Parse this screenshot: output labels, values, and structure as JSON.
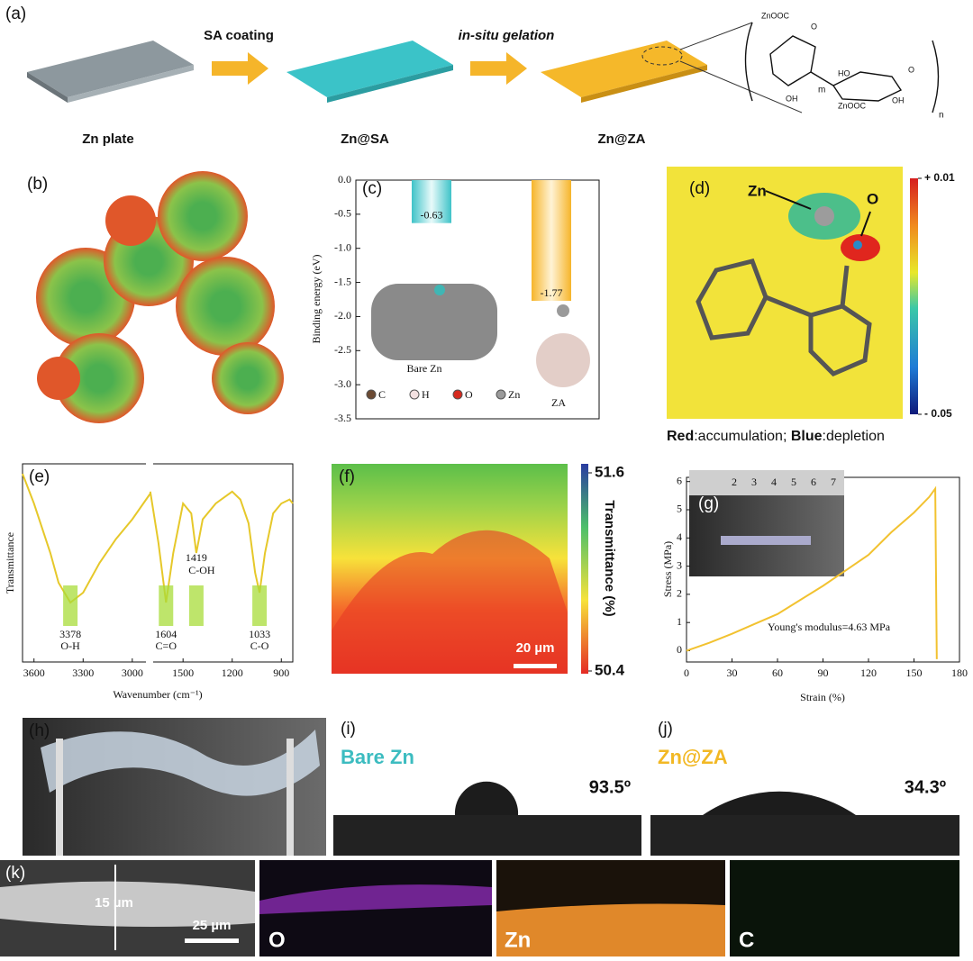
{
  "panel_a": {
    "label": "(a)",
    "steps": [
      "SA coating",
      "in-situ gelation"
    ],
    "samples": [
      "Zn plate",
      "Zn@SA",
      "Zn@ZA"
    ],
    "structure": [
      "ZnOOC",
      "HO",
      "OH",
      "O",
      "OH",
      "ZnOOC",
      "O",
      "m",
      "n"
    ]
  },
  "panel_b": {
    "label": "(b)"
  },
  "panel_c": {
    "label": "(c)",
    "type": "bar",
    "y_label": "Binding energy (eV)",
    "categories": [
      "Bare Zn",
      "ZA"
    ],
    "values": [
      -0.63,
      -1.77
    ],
    "value_labels": [
      "-0.63",
      "-1.77"
    ],
    "colors": [
      "#3fc3c8",
      "#f6b52a"
    ],
    "ylim": [
      -3.5,
      0
    ],
    "yticks": [
      {
        "value": 0,
        "label": "0.0"
      },
      -0.5,
      {
        "value": -1,
        "label": "-1.0"
      },
      -1.5,
      {
        "value": -2,
        "label": "-2.0"
      },
      -2.5,
      {
        "value": -3,
        "label": "-3.0"
      },
      -3.5
    ],
    "legend": [
      {
        "name": "C",
        "color": "#6b4a33"
      },
      {
        "name": "H",
        "color": "#f3e1e1"
      },
      {
        "name": "O",
        "color": "#d62a1e"
      },
      {
        "name": "Zn",
        "color": "#9a9a9a"
      }
    ]
  },
  "panel_d": {
    "label": "(d)",
    "annotations": [
      "Zn",
      "O"
    ],
    "colorbar_ticks": [
      {
        "value": 0.01,
        "label": "+ 0.01"
      },
      {
        "value": -0.05,
        "label": "- 0.05"
      }
    ],
    "caption": [
      "Red",
      ":accumulation; ",
      "Blue",
      ":depletion"
    ]
  },
  "panel_e": {
    "label": "(e)",
    "type": "line",
    "x_label": "Wavenumber (cm⁻¹)",
    "y_label": "Transmittance",
    "color": "#e6c82a",
    "xlim": [
      3670,
      830
    ],
    "x_break": [
      2890,
      1700
    ],
    "xticks": [
      3600,
      3300,
      3000,
      1500,
      1200,
      900
    ],
    "ylim": [
      0,
      100
    ],
    "x": [
      3670,
      3600,
      3500,
      3450,
      3378,
      3300,
      3200,
      3100,
      3000,
      2890,
      2300,
      1700,
      1650,
      1604,
      1560,
      1500,
      1450,
      1419,
      1380,
      1300,
      1200,
      1150,
      1100,
      1060,
      1033,
      1000,
      950,
      900,
      850,
      830
    ],
    "values": [
      95,
      80,
      55,
      40,
      30,
      35,
      50,
      62,
      72,
      85,
      null,
      86,
      60,
      30,
      55,
      80,
      75,
      55,
      72,
      80,
      86,
      82,
      70,
      45,
      35,
      55,
      75,
      80,
      82,
      80
    ],
    "peaks": [
      {
        "value": 3378,
        "label": "O-H"
      },
      {
        "value": 1604,
        "label": "C=O"
      },
      {
        "value": 1419,
        "label": "C-OH"
      },
      {
        "value": 1033,
        "label": "C-O"
      }
    ]
  },
  "panel_f": {
    "label": "(f)",
    "colorbar_ticks": [
      51.6,
      50.4
    ],
    "colorbar_label": "Transmittance (%)",
    "scale_bar": "20 µm"
  },
  "panel_g": {
    "label": "(g)",
    "type": "line",
    "x_label": "Strain (%)",
    "y_label": "Stress (MPa)",
    "color": "#f2c230",
    "xlim": [
      0,
      180
    ],
    "xticks": [
      0,
      30,
      60,
      90,
      120,
      150,
      180
    ],
    "ylim": [
      -0.4,
      6.15
    ],
    "yticks": [
      0,
      1,
      2,
      3,
      4,
      5,
      6
    ],
    "x": [
      0,
      15,
      30,
      45,
      60,
      75,
      90,
      105,
      120,
      135,
      150,
      160,
      164,
      165
    ],
    "values": [
      0,
      0.28,
      0.6,
      0.95,
      1.3,
      1.8,
      2.3,
      2.85,
      3.4,
      4.2,
      4.9,
      5.45,
      5.75,
      -0.3
    ],
    "annotation": "Young's modulus=4.63 MPa",
    "inset_numbers": [
      "2",
      "3",
      "4",
      "5",
      "6",
      "7"
    ]
  },
  "panel_h": {
    "label": "(h)"
  },
  "panel_i": {
    "label": "(i)",
    "title": "Bare Zn",
    "contact_angle": {
      "value": 93.5,
      "label": "93.5º"
    }
  },
  "panel_j": {
    "label": "(j)",
    "title": "Zn@ZA",
    "contact_angle": {
      "value": 34.3,
      "label": "34.3º"
    }
  },
  "panel_k": {
    "label": "(k)",
    "thickness": "15 µm",
    "scale_bar": "25 µm",
    "maps": [
      "O",
      "Zn",
      "C"
    ]
  }
}
